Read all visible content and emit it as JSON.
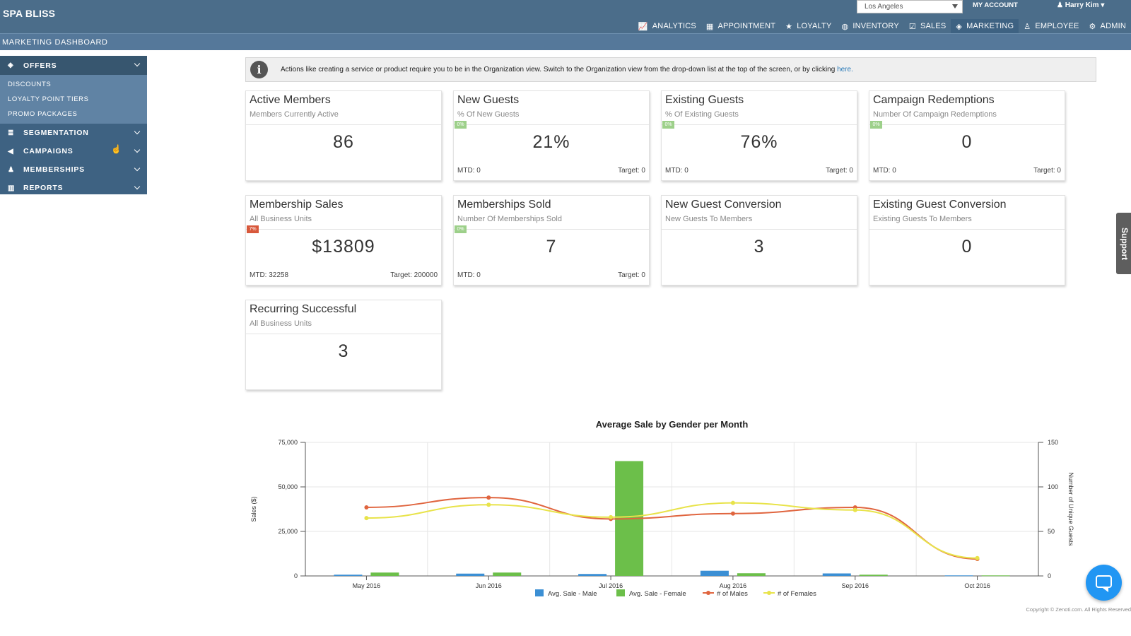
{
  "app": {
    "brand": "SPA BLISS"
  },
  "header": {
    "location": "Los Angeles",
    "my_account": "MY ACCOUNT",
    "user_name": "Harry Kim",
    "nav": [
      {
        "label": "ANALYTICS",
        "icon": "analytics-icon",
        "glyph": "📈",
        "active": false
      },
      {
        "label": "APPOINTMENT",
        "icon": "calendar-icon",
        "glyph": "▦",
        "active": false
      },
      {
        "label": "LOYALTY",
        "icon": "star-icon",
        "glyph": "★",
        "active": false
      },
      {
        "label": "INVENTORY",
        "icon": "inventory-icon",
        "glyph": "◍",
        "active": false
      },
      {
        "label": "SALES",
        "icon": "sales-icon",
        "glyph": "☑",
        "active": false
      },
      {
        "label": "MARKETING",
        "icon": "tag-icon",
        "glyph": "◈",
        "active": true
      },
      {
        "label": "EMPLOYEE",
        "icon": "employee-icon",
        "glyph": "♙",
        "active": false
      },
      {
        "label": "ADMIN",
        "icon": "admin-icon",
        "glyph": "⚙",
        "active": false
      }
    ]
  },
  "subbar": {
    "title": "MARKETING DASHBOARD"
  },
  "sidebar": {
    "sections": [
      {
        "label": "OFFERS",
        "icon": "tag-icon",
        "glyph": "◈",
        "expanded": true,
        "items": [
          "DISCOUNTS",
          "LOYALTY POINT TIERS",
          "PROMO PACKAGES"
        ]
      },
      {
        "label": "SEGMENTATION",
        "icon": "database-icon",
        "glyph": "≣",
        "expanded": false,
        "items": []
      },
      {
        "label": "CAMPAIGNS",
        "icon": "megaphone-icon",
        "glyph": "◀",
        "expanded": false,
        "items": []
      },
      {
        "label": "MEMBERSHIPS",
        "icon": "users-icon",
        "glyph": "♟",
        "expanded": false,
        "items": []
      },
      {
        "label": "REPORTS",
        "icon": "bar-chart-icon",
        "glyph": "▥",
        "expanded": false,
        "items": []
      }
    ]
  },
  "info": {
    "text": "Actions like creating a service or product require you to be in the Organization view. Switch to the Organization view from the drop-down list at the top of the screen, or by clicking ",
    "link": "here."
  },
  "cards": [
    {
      "title": "Active Members",
      "subtitle": "Members Currently Active",
      "value": "86",
      "badge": "",
      "badge_color": "",
      "mtd": "",
      "target": ""
    },
    {
      "title": "New Guests",
      "subtitle": "% Of New Guests",
      "value": "21%",
      "badge": "0%",
      "badge_color": "green",
      "mtd": "MTD: 0",
      "target": "Target: 0"
    },
    {
      "title": "Existing Guests",
      "subtitle": "% Of Existing Guests",
      "value": "76%",
      "badge": "0%",
      "badge_color": "green",
      "mtd": "MTD: 0",
      "target": "Target: 0"
    },
    {
      "title": "Campaign Redemptions",
      "subtitle": "Number Of Campaign Redemptions",
      "value": "0",
      "badge": "0%",
      "badge_color": "green",
      "mtd": "MTD: 0",
      "target": "Target: 0"
    },
    {
      "title": "Membership Sales",
      "subtitle": "All Business Units",
      "value": "$13809",
      "badge": "7%",
      "badge_color": "red",
      "mtd": "MTD: 32258",
      "target": "Target: 200000"
    },
    {
      "title": "Memberships Sold",
      "subtitle": "Number Of Memberships Sold",
      "value": "7",
      "badge": "0%",
      "badge_color": "green",
      "mtd": "MTD: 0",
      "target": "Target: 0"
    },
    {
      "title": "New Guest Conversion",
      "subtitle": "New Guests To Members",
      "value": "3",
      "badge": "",
      "badge_color": "",
      "mtd": "",
      "target": ""
    },
    {
      "title": "Existing Guest Conversion",
      "subtitle": "Existing Guests To Members",
      "value": "0",
      "badge": "",
      "badge_color": "",
      "mtd": "",
      "target": ""
    },
    {
      "title": "Recurring Successful",
      "subtitle": "All Business Units",
      "value": "3",
      "badge": "",
      "badge_color": "",
      "mtd": "",
      "target": ""
    }
  ],
  "support_label": "Support",
  "copyright": "Copyright © Zenoti.com. All Rights Reserved",
  "chart_data": {
    "type": "bar",
    "title": "Average Sale by Gender per Month",
    "ylabel": "Sales ($)",
    "y2label": "Number of Unique Guests",
    "ylim": [
      0,
      75000
    ],
    "y2lim": [
      0,
      150
    ],
    "yticks": [
      "0",
      "25,000",
      "50,000",
      "75,000"
    ],
    "y2ticks": [
      "0",
      "50",
      "100",
      "150"
    ],
    "categories": [
      "May 2016",
      "Jun 2016",
      "Jul 2016",
      "Aug 2016",
      "Sep 2016",
      "Oct 2016"
    ],
    "grid": true,
    "legend_position": "bottom",
    "series": [
      {
        "name": "Avg. Sale - Male",
        "type": "bar",
        "axis": "left",
        "color": "#3b8fd4",
        "values": [
          700,
          1300,
          1100,
          2900,
          1400,
          300
        ]
      },
      {
        "name": "Avg. Sale - Female",
        "type": "bar",
        "axis": "left",
        "color": "#6cbf4a",
        "values": [
          1900,
          1900,
          64500,
          1500,
          700,
          300
        ]
      },
      {
        "name": "# of Males",
        "type": "line",
        "axis": "right",
        "color": "#e0653f",
        "values": [
          77,
          88,
          64,
          70,
          77,
          19
        ]
      },
      {
        "name": "# of Females",
        "type": "line",
        "axis": "right",
        "color": "#e8e34a",
        "values": [
          65,
          80,
          66,
          82,
          74,
          20
        ]
      }
    ]
  }
}
